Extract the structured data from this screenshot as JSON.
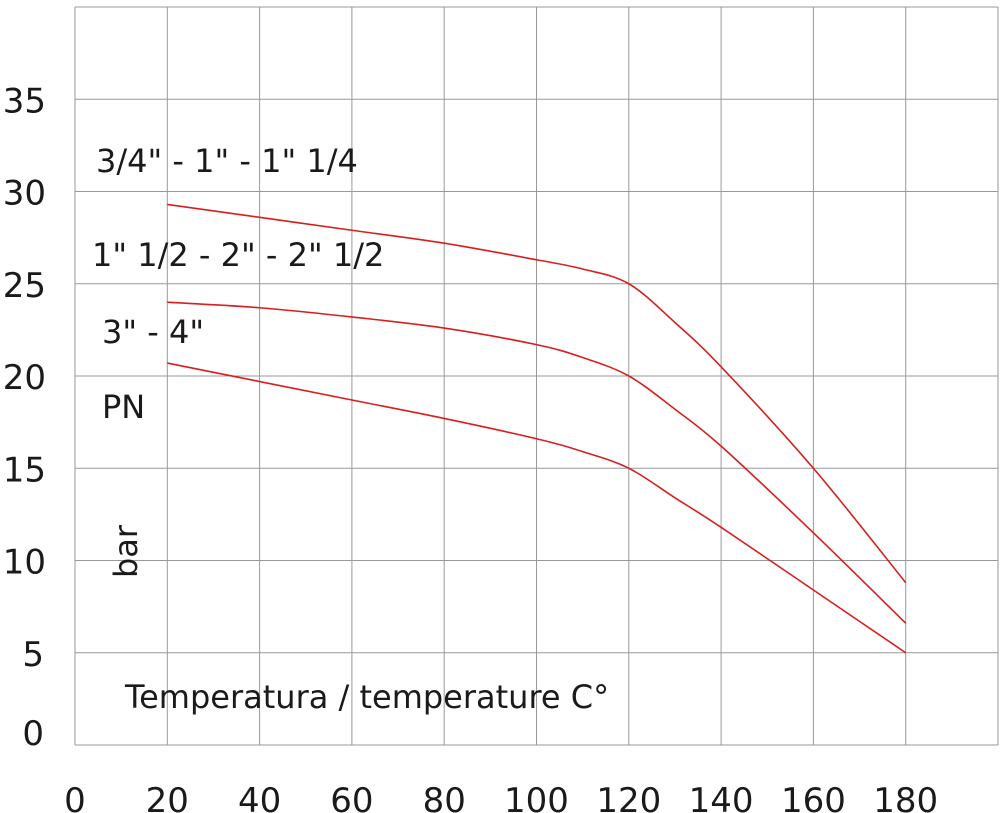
{
  "chart_data": {
    "type": "line",
    "title": "",
    "xlabel": "Temperatura / temperature C°",
    "ylabel": "bar",
    "ylabel_extra": "PN",
    "xlim": [
      0,
      200
    ],
    "ylim": [
      0,
      40
    ],
    "x_ticks": [
      0,
      20,
      40,
      60,
      80,
      100,
      120,
      140,
      160,
      180
    ],
    "y_ticks": [
      0,
      5,
      10,
      15,
      20,
      25,
      30,
      35
    ],
    "x_grid_step": 20,
    "y_grid_step": 5,
    "grid": true,
    "line_color": "#d81e1e",
    "grid_color": "#999999",
    "series": [
      {
        "name": "3/4\" - 1\" - 1\" 1/4",
        "x": [
          20,
          40,
          60,
          80,
          100,
          110,
          120,
          130,
          140,
          160,
          180
        ],
        "y": [
          29.3,
          28.6,
          27.9,
          27.2,
          26.3,
          25.8,
          25,
          22.9,
          20.5,
          15,
          8.8
        ]
      },
      {
        "name": "1\" 1/2 - 2\" - 2\" 1/2",
        "x": [
          20,
          40,
          60,
          80,
          100,
          110,
          120,
          130,
          140,
          160,
          180
        ],
        "y": [
          24,
          23.7,
          23.2,
          22.6,
          21.7,
          21,
          20,
          18.2,
          16.2,
          11.5,
          6.6
        ]
      },
      {
        "name": "3\" - 4\"",
        "x": [
          20,
          40,
          60,
          80,
          100,
          110,
          120,
          130,
          140,
          160,
          180
        ],
        "y": [
          20.7,
          19.7,
          18.7,
          17.7,
          16.6,
          15.9,
          15,
          13.4,
          11.8,
          8.4,
          5
        ]
      }
    ]
  }
}
